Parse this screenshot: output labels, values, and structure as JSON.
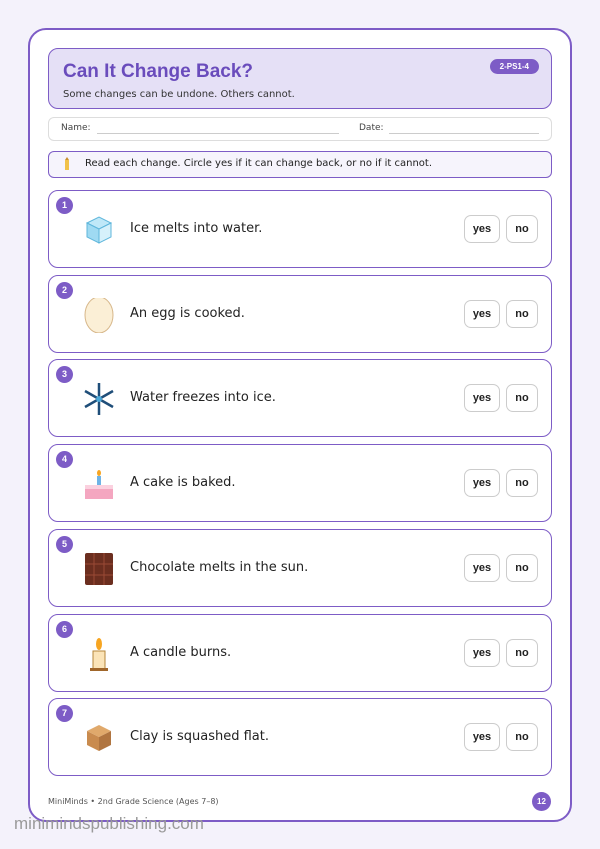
{
  "header": {
    "title": "Can It Change Back?",
    "subtitle": "Some changes can be undone. Others cannot.",
    "badge": "2-PS1-4"
  },
  "fields": {
    "name": "Name:",
    "date": "Date:"
  },
  "instruction": "Read each change. Circle yes if it can change back, or no if it cannot.",
  "items": [
    {
      "number": 1,
      "text": "Ice melts into water.",
      "yes": "yes",
      "no": "no"
    },
    {
      "number": 2,
      "text": "An egg is cooked.",
      "yes": "yes",
      "no": "no"
    },
    {
      "number": 3,
      "text": "Water freezes into ice.",
      "yes": "yes",
      "no": "no"
    },
    {
      "number": 4,
      "text": "A cake is baked.",
      "yes": "yes",
      "no": "no"
    },
    {
      "number": 5,
      "text": "Chocolate melts in the sun.",
      "yes": "yes",
      "no": "no"
    },
    {
      "number": 6,
      "text": "A candle burns.",
      "yes": "yes",
      "no": "no"
    },
    {
      "number": 7,
      "text": "Clay is squashed flat.",
      "yes": "yes",
      "no": "no"
    }
  ],
  "footer": {
    "credit": "MiniMinds • 2nd Grade Science (Ages 7–8)",
    "page": "12"
  },
  "watermark": "minimindspublishing.com"
}
